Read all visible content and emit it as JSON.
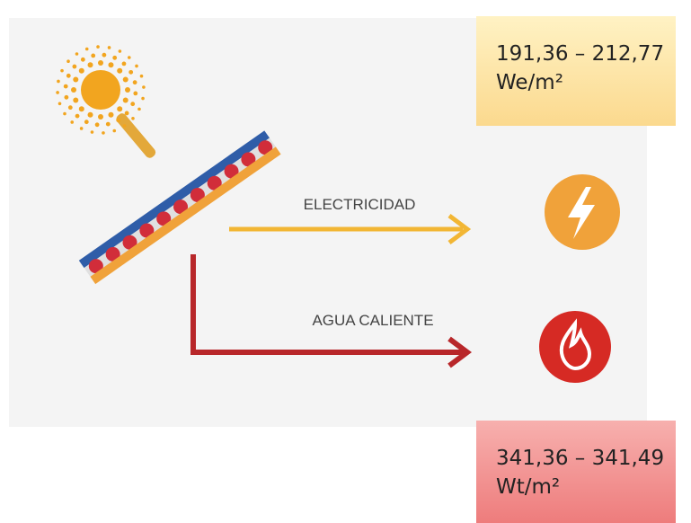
{
  "diagram": {
    "electricity_label": "ELECTRICIDAD",
    "hot_water_label": "AGUA CALIENTE"
  },
  "electric_output": {
    "range": "191,36 – 212,77",
    "unit": "We/m²"
  },
  "thermal_output": {
    "range": "341,36 – 341,49",
    "unit": "Wt/m²"
  }
}
